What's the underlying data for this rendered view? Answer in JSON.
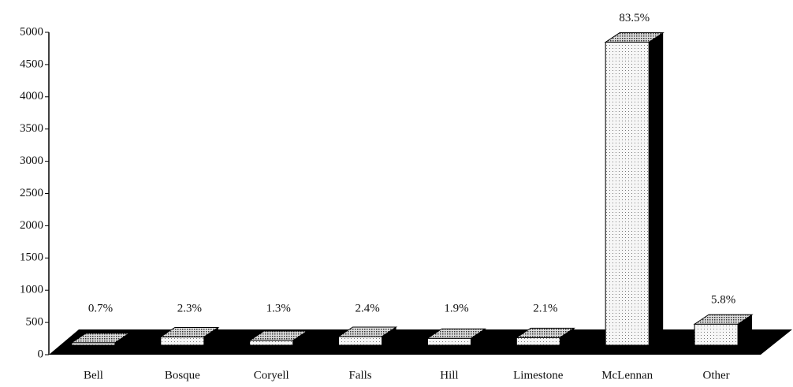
{
  "chart_data": {
    "type": "bar3d",
    "categories": [
      "Bell",
      "Bosque",
      "Coryell",
      "Falls",
      "Hill",
      "Limestone",
      "McLennan",
      "Other"
    ],
    "values": [
      39,
      129,
      73,
      135,
      107,
      118,
      4700,
      327
    ],
    "annotations": [
      "0.7%",
      "2.3%",
      "1.3%",
      "2.4%",
      "1.9%",
      "2.1%",
      "83.5%",
      "5.8%"
    ],
    "color": "#f4f4f4",
    "ylim": [
      0,
      5000
    ],
    "yticks": [
      0,
      500,
      1000,
      1500,
      2000,
      2500,
      3000,
      3500,
      4000,
      4500,
      5000
    ],
    "grid": false
  }
}
